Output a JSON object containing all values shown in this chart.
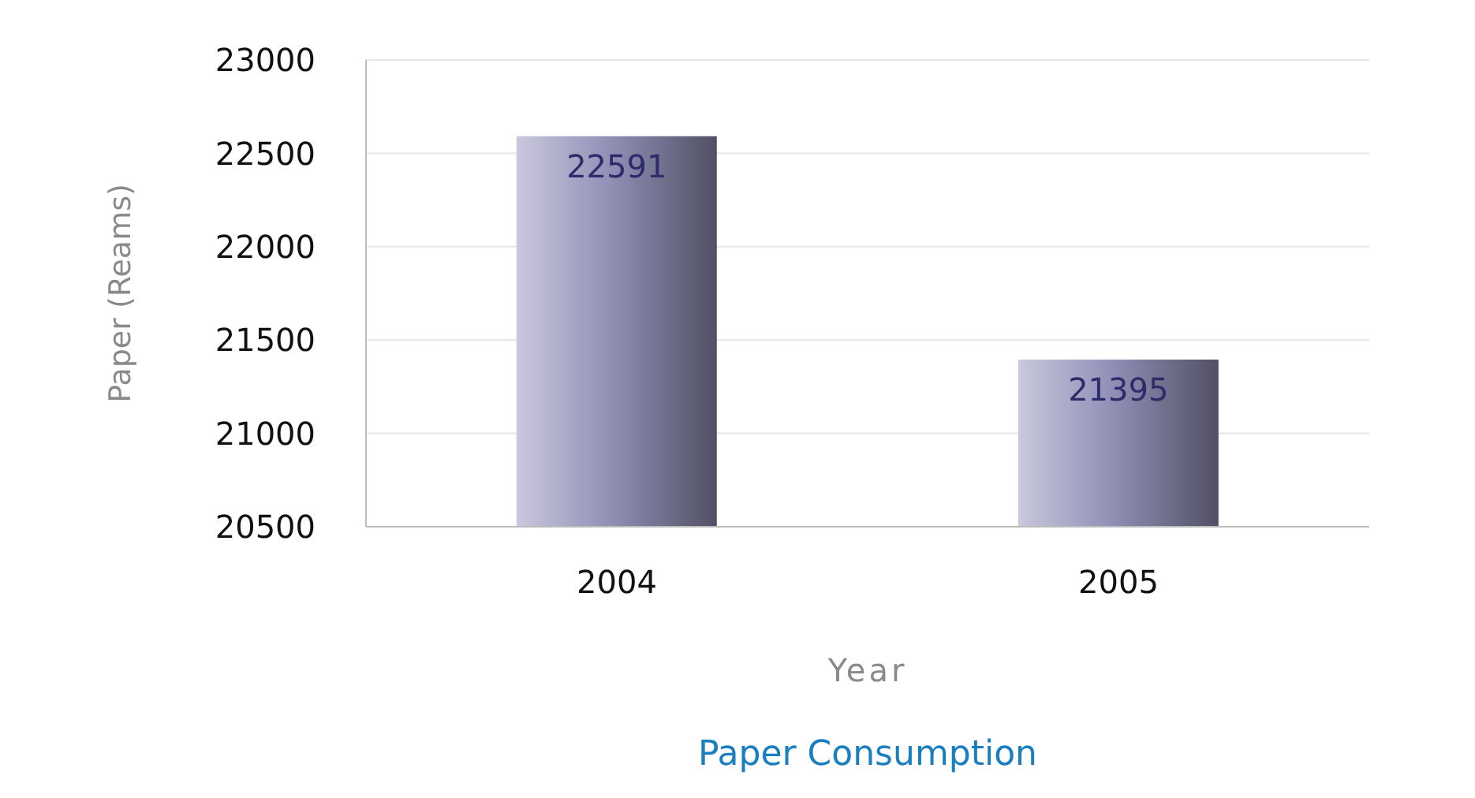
{
  "chart_data": {
    "type": "bar",
    "title": "Paper Consumption",
    "xlabel": "Year",
    "ylabel": "Paper (Reams)",
    "categories": [
      "2004",
      "2005"
    ],
    "values": [
      22591,
      21395
    ],
    "color": "#9391b8",
    "ylim": [
      20500,
      23000
    ],
    "yticks": [
      20500,
      21000,
      21500,
      22000,
      22500,
      23000
    ],
    "grid": "y",
    "data_labels": true
  }
}
